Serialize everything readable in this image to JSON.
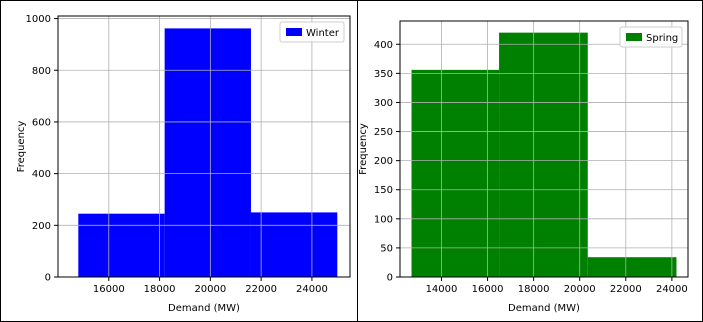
{
  "chart_data": [
    {
      "type": "histogram",
      "bars": [
        {
          "x0": 14800,
          "x1": 18200,
          "value": 245
        },
        {
          "x0": 18200,
          "x1": 21600,
          "value": 962
        },
        {
          "x0": 21600,
          "x1": 25000,
          "value": 250
        }
      ],
      "color": "#0000ff",
      "xlabel": "Demand (MW)",
      "ylabel": "Frequency",
      "xlim": [
        14000,
        25500
      ],
      "ylim": [
        0,
        1010
      ],
      "xticks": [
        16000,
        18000,
        20000,
        22000,
        24000
      ],
      "yticks": [
        0,
        200,
        400,
        600,
        800,
        1000
      ],
      "legend": {
        "label": "Winter",
        "placement": "top-right"
      },
      "grid": true
    },
    {
      "type": "histogram",
      "bars": [
        {
          "x0": 12700,
          "x1": 16500,
          "value": 356
        },
        {
          "x0": 16500,
          "x1": 20350,
          "value": 420
        },
        {
          "x0": 20350,
          "x1": 24200,
          "value": 34
        }
      ],
      "color": "#008000",
      "xlabel": "Demand (MW)",
      "ylabel": "Frequency",
      "xlim": [
        12200,
        24700
      ],
      "ylim": [
        0,
        440
      ],
      "xticks": [
        14000,
        16000,
        18000,
        20000,
        22000,
        24000
      ],
      "yticks": [
        0,
        50,
        100,
        150,
        200,
        250,
        300,
        350,
        400
      ],
      "legend": {
        "label": "Spring",
        "placement": "top-right"
      },
      "grid": true
    }
  ]
}
